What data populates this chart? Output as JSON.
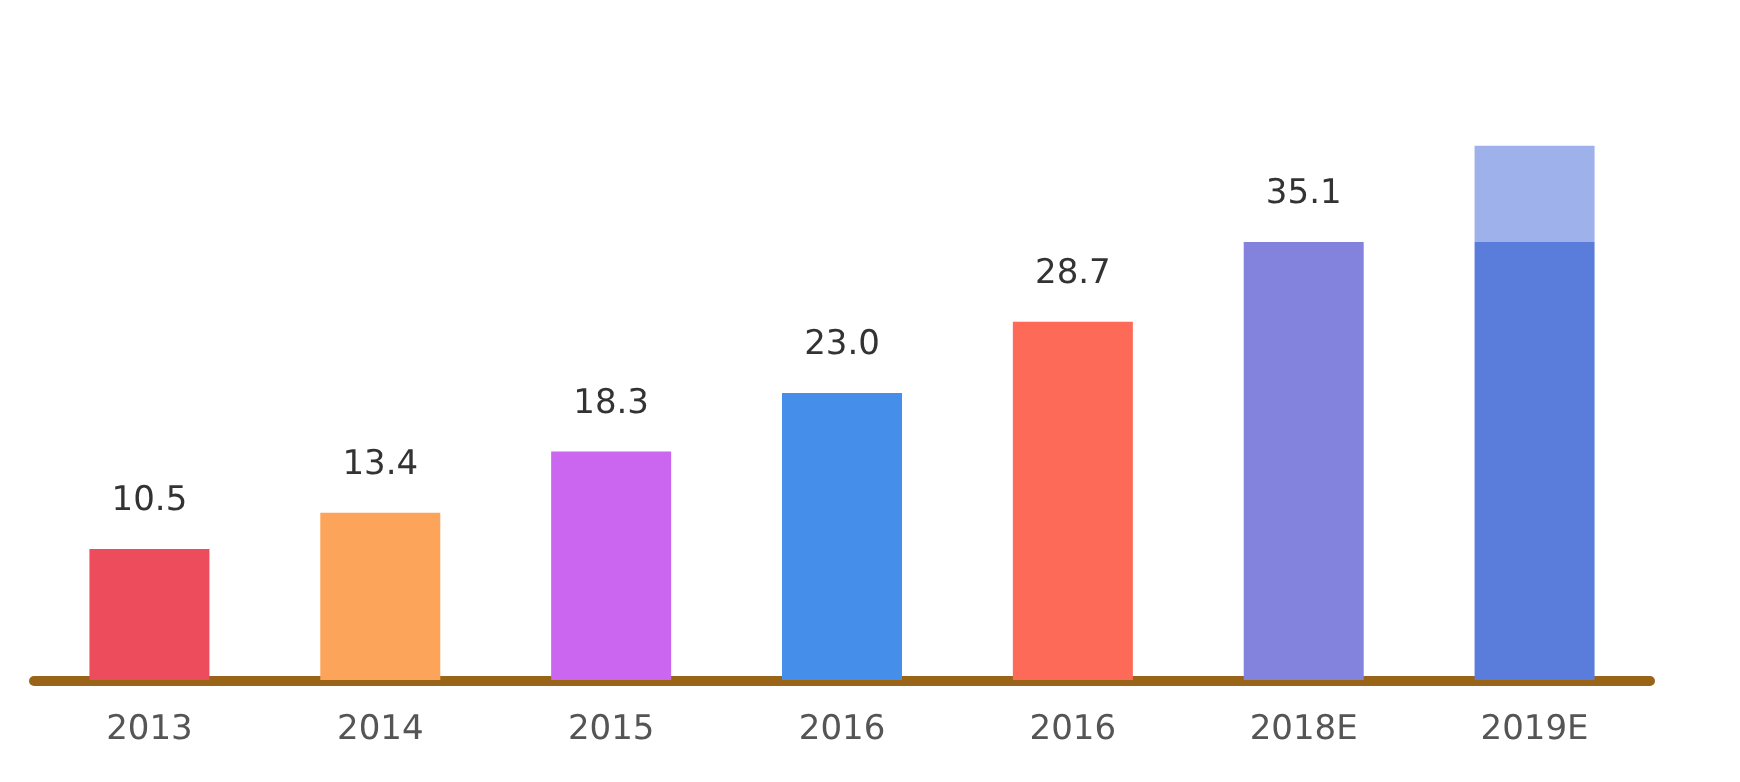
{
  "chart_data": {
    "type": "bar",
    "stacked": true,
    "categories": [
      "2013",
      "2014",
      "2015",
      "2016",
      "2016",
      "2018E",
      "2019E"
    ],
    "series": [
      {
        "colors": [
          "#ec4c5c",
          "#fca55a",
          "#cb66f0",
          "#458fea",
          "#fd6a58",
          "#8383de",
          "#5a7ddb"
        ],
        "values": [
          10.5,
          13.4,
          18.3,
          23.0,
          28.7,
          35.1,
          35.1
        ],
        "value_labels": [
          "10.5",
          "13.4",
          "18.3",
          "23.0",
          "28.7",
          "35.1",
          null
        ]
      },
      {
        "color": "#9fb1eb",
        "values": [
          null,
          null,
          null,
          null,
          null,
          null,
          7.7
        ]
      }
    ]
  }
}
